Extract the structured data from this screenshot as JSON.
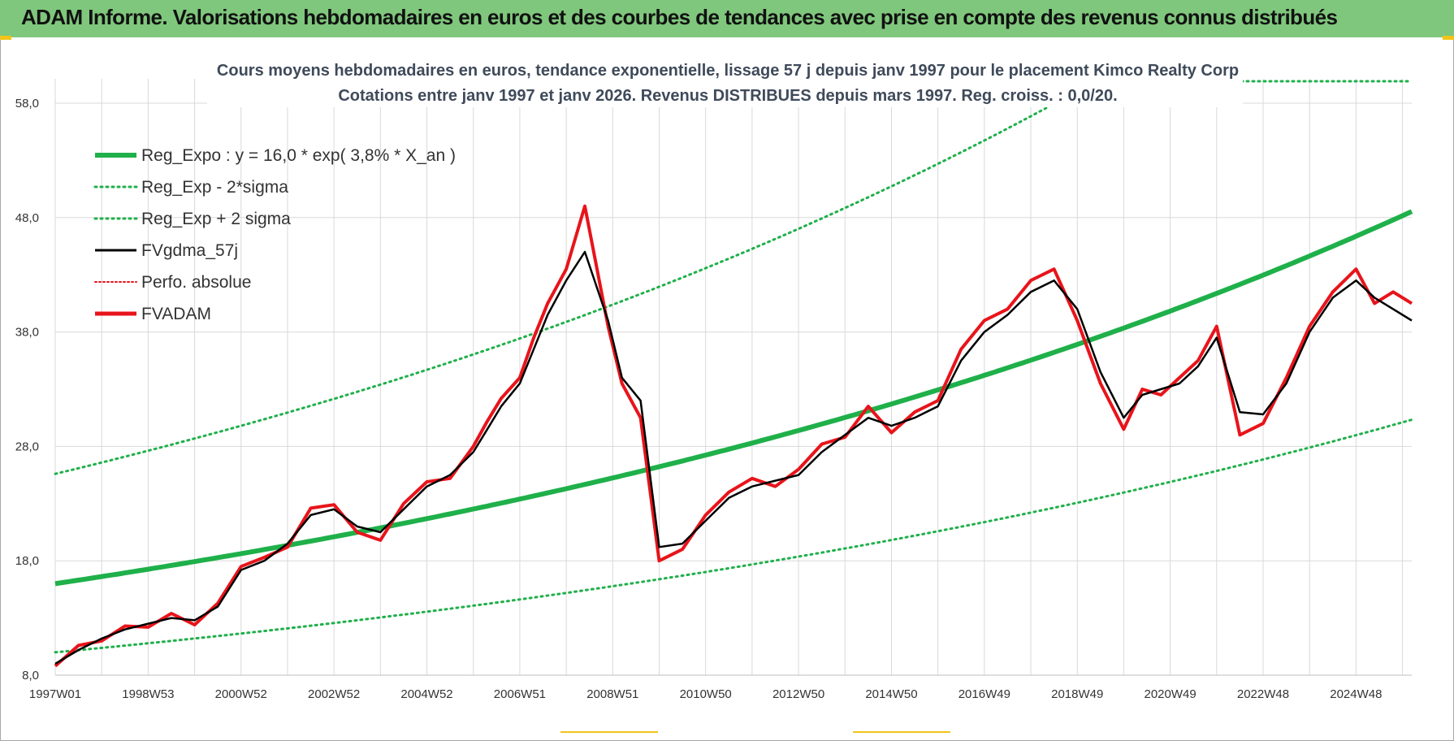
{
  "banner": {
    "title": "ADAM Informe. Valorisations hebdomadaires en euros et des courbes de tendances avec prise en compte des revenus connus distribués"
  },
  "colors": {
    "banner_bg": "#7fc77c",
    "trend_green": "#1fb04a",
    "sigma_green": "#1fb04a",
    "smooth_black": "#000000",
    "fvadam_red": "#e8141b",
    "grid": "#d9d9d9"
  },
  "chart_data": {
    "type": "line",
    "title": "Cours moyens hebdomadaires en euros, tendance exponentielle, lissage 57 j depuis janv 1997  pour le placement Kimco Realty Corp",
    "subtitle": "Cotations entre janv 1997 et janv 2026. Revenus DISTRIBUES depuis mars 1997.  Reg. croiss. : 0,0/20.",
    "xlabel": "",
    "ylabel": "",
    "ylim": [
      8,
      58
    ],
    "xlim": [
      1997.0,
      2026.2
    ],
    "y_ticks": [
      "8,0",
      "18,0",
      "28,0",
      "38,0",
      "48,0",
      "58,0"
    ],
    "x_ticks": [
      {
        "label": "1997W01",
        "x": 1997.0
      },
      {
        "label": "1998W53",
        "x": 1999.0
      },
      {
        "label": "2000W52",
        "x": 2001.0
      },
      {
        "label": "2002W52",
        "x": 2003.0
      },
      {
        "label": "2004W52",
        "x": 2005.0
      },
      {
        "label": "2006W51",
        "x": 2007.0
      },
      {
        "label": "2008W51",
        "x": 2009.0
      },
      {
        "label": "2010W50",
        "x": 2011.0
      },
      {
        "label": "2012W50",
        "x": 2013.0
      },
      {
        "label": "2014W50",
        "x": 2015.0
      },
      {
        "label": "2016W49",
        "x": 2017.0
      },
      {
        "label": "2018W49",
        "x": 2019.0
      },
      {
        "label": "2020W49",
        "x": 2021.0
      },
      {
        "label": "2022W48",
        "x": 2023.0
      },
      {
        "label": "2024W48",
        "x": 2025.0
      }
    ],
    "grid": true,
    "legend_position": "top-left",
    "regression": {
      "a": 16.0,
      "rate": 0.038,
      "sigma_low_factor": 0.625,
      "sigma_high_factor": 1.6
    },
    "series": [
      {
        "name": "Reg_Expo : y = 16,0 * exp( 3,8% *  X_an )",
        "style": "trend"
      },
      {
        "name": "Reg_Exp - 2*sigma",
        "style": "sigma_low"
      },
      {
        "name": "Reg_Exp + 2 sigma",
        "style": "sigma_high"
      },
      {
        "name": "FVgdma_57j",
        "style": "smooth",
        "x": [
          1997.0,
          1997.5,
          1998.0,
          1998.5,
          1999.0,
          1999.5,
          2000.0,
          2000.5,
          2001.0,
          2001.5,
          2002.0,
          2002.5,
          2003.0,
          2003.5,
          2004.0,
          2004.5,
          2005.0,
          2005.5,
          2006.0,
          2006.3,
          2006.6,
          2007.0,
          2007.3,
          2007.6,
          2008.0,
          2008.4,
          2008.9,
          2009.2,
          2009.6,
          2010.0,
          2010.5,
          2011.0,
          2011.5,
          2012.0,
          2012.5,
          2013.0,
          2013.5,
          2014.0,
          2014.5,
          2015.0,
          2015.5,
          2016.0,
          2016.5,
          2017.0,
          2017.5,
          2018.0,
          2018.5,
          2019.0,
          2019.5,
          2020.0,
          2020.4,
          2020.8,
          2021.2,
          2021.6,
          2022.0,
          2022.5,
          2023.0,
          2023.5,
          2024.0,
          2024.5,
          2025.0,
          2025.4,
          2025.8,
          2026.2
        ],
        "values": [
          9.0,
          10.2,
          11.2,
          12.0,
          12.5,
          13.0,
          12.8,
          14.0,
          17.2,
          18.0,
          19.5,
          22.0,
          22.5,
          21.0,
          20.5,
          22.5,
          24.5,
          25.5,
          27.5,
          29.5,
          31.5,
          33.5,
          36.5,
          39.5,
          42.5,
          45.0,
          39.0,
          34.0,
          32.0,
          19.2,
          19.5,
          21.5,
          23.5,
          24.5,
          25.0,
          25.5,
          27.5,
          29.0,
          30.5,
          29.8,
          30.5,
          31.5,
          35.5,
          38.0,
          39.5,
          41.5,
          42.5,
          40.0,
          34.5,
          30.5,
          32.5,
          33.0,
          33.5,
          35.0,
          37.5,
          31.0,
          30.8,
          33.5,
          38.0,
          41.0,
          42.5,
          41.0,
          40.0,
          39.0
        ],
        "note": ""
      },
      {
        "name": "Perfo. absolue",
        "style": "dotted_red"
      },
      {
        "name": "FVADAM",
        "style": "main",
        "x": [
          1997.0,
          1997.5,
          1998.0,
          1998.5,
          1999.0,
          1999.5,
          2000.0,
          2000.5,
          2001.0,
          2001.5,
          2002.0,
          2002.5,
          2003.0,
          2003.5,
          2004.0,
          2004.5,
          2005.0,
          2005.5,
          2006.0,
          2006.3,
          2006.6,
          2007.0,
          2007.3,
          2007.6,
          2008.0,
          2008.4,
          2008.9,
          2009.2,
          2009.6,
          2010.0,
          2010.5,
          2011.0,
          2011.5,
          2012.0,
          2012.5,
          2013.0,
          2013.5,
          2014.0,
          2014.5,
          2015.0,
          2015.5,
          2016.0,
          2016.5,
          2017.0,
          2017.5,
          2018.0,
          2018.5,
          2019.0,
          2019.5,
          2020.0,
          2020.4,
          2020.8,
          2021.2,
          2021.6,
          2022.0,
          2022.5,
          2023.0,
          2023.5,
          2024.0,
          2024.5,
          2025.0,
          2025.4,
          2025.8,
          2026.2
        ],
        "values": [
          8.8,
          10.6,
          11.0,
          12.3,
          12.2,
          13.4,
          12.4,
          14.3,
          17.5,
          18.3,
          19.2,
          22.6,
          22.9,
          20.5,
          19.8,
          23.0,
          24.9,
          25.2,
          28.0,
          30.2,
          32.2,
          34.0,
          37.5,
          40.5,
          43.5,
          49.0,
          38.5,
          33.5,
          30.5,
          18.0,
          19.0,
          22.0,
          24.0,
          25.2,
          24.5,
          26.0,
          28.2,
          28.8,
          31.5,
          29.2,
          31.0,
          32.0,
          36.5,
          39.0,
          40.0,
          42.5,
          43.5,
          39.0,
          33.5,
          29.5,
          33.0,
          32.5,
          34.0,
          35.5,
          38.5,
          29.0,
          30.0,
          34.0,
          38.5,
          41.5,
          43.5,
          40.5,
          41.5,
          40.5
        ]
      }
    ]
  }
}
